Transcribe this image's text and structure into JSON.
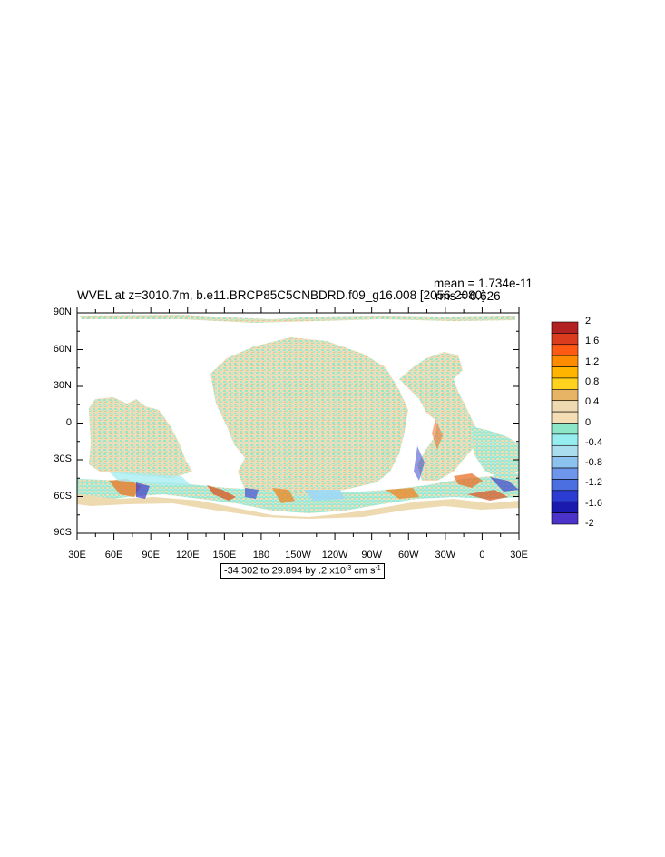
{
  "title": "WVEL at z=3010.7m, b.e11.BRCP85C5CNBDRD.f09_g16.008 [2056-2080]",
  "mean_label": "mean = 1.734e-11",
  "rms_label": "rms = 0.626",
  "range_prefix": "-34.302 to 29.894 by .2 x10",
  "range_exp": "-3",
  "range_units": " cm s",
  "range_units_exp": "-1",
  "lat_labels": [
    "90N",
    "60N",
    "30N",
    "0",
    "30S",
    "60S",
    "90S"
  ],
  "lon_labels": [
    "30E",
    "60E",
    "90E",
    "120E",
    "150E",
    "180",
    "150W",
    "120W",
    "90W",
    "60W",
    "30W",
    "0",
    "30E"
  ],
  "colorbar": {
    "labels": [
      "2",
      "1.6",
      "1.2",
      "0.8",
      "0.4",
      "0",
      "-0.4",
      "-0.8",
      "-1.2",
      "-1.6",
      "-2"
    ],
    "colors_top_to_bottom": [
      "#b22222",
      "#dc3c1e",
      "#ff5a14",
      "#ff8c00",
      "#ffb400",
      "#ffd21e",
      "#e6b464",
      "#eed9b0",
      "#f5deb3",
      "#8ee6c8",
      "#96eef0",
      "#aadeef",
      "#8cc3ee",
      "#6e96eb",
      "#4b6fe1",
      "#2a3cd2",
      "#1a1aaf",
      "#4b32c8"
    ]
  },
  "chart_data": {
    "type": "heatmap",
    "variable": "WVEL",
    "title": "WVEL at z=3010.7m, b.e11.BRCP85C5CNBDRD.f09_g16.008 [2056-2080]",
    "mean": 1.734e-11,
    "rms": 0.626,
    "min": -34.302,
    "max": 29.894,
    "contour_interval": 0.2,
    "scale": "x10^-3",
    "units": "cm s^-1",
    "colorbar_range": [
      -2,
      2
    ],
    "lon_range": [
      "30E",
      "30E"
    ],
    "lat_range": [
      "90S",
      "90N"
    ]
  }
}
